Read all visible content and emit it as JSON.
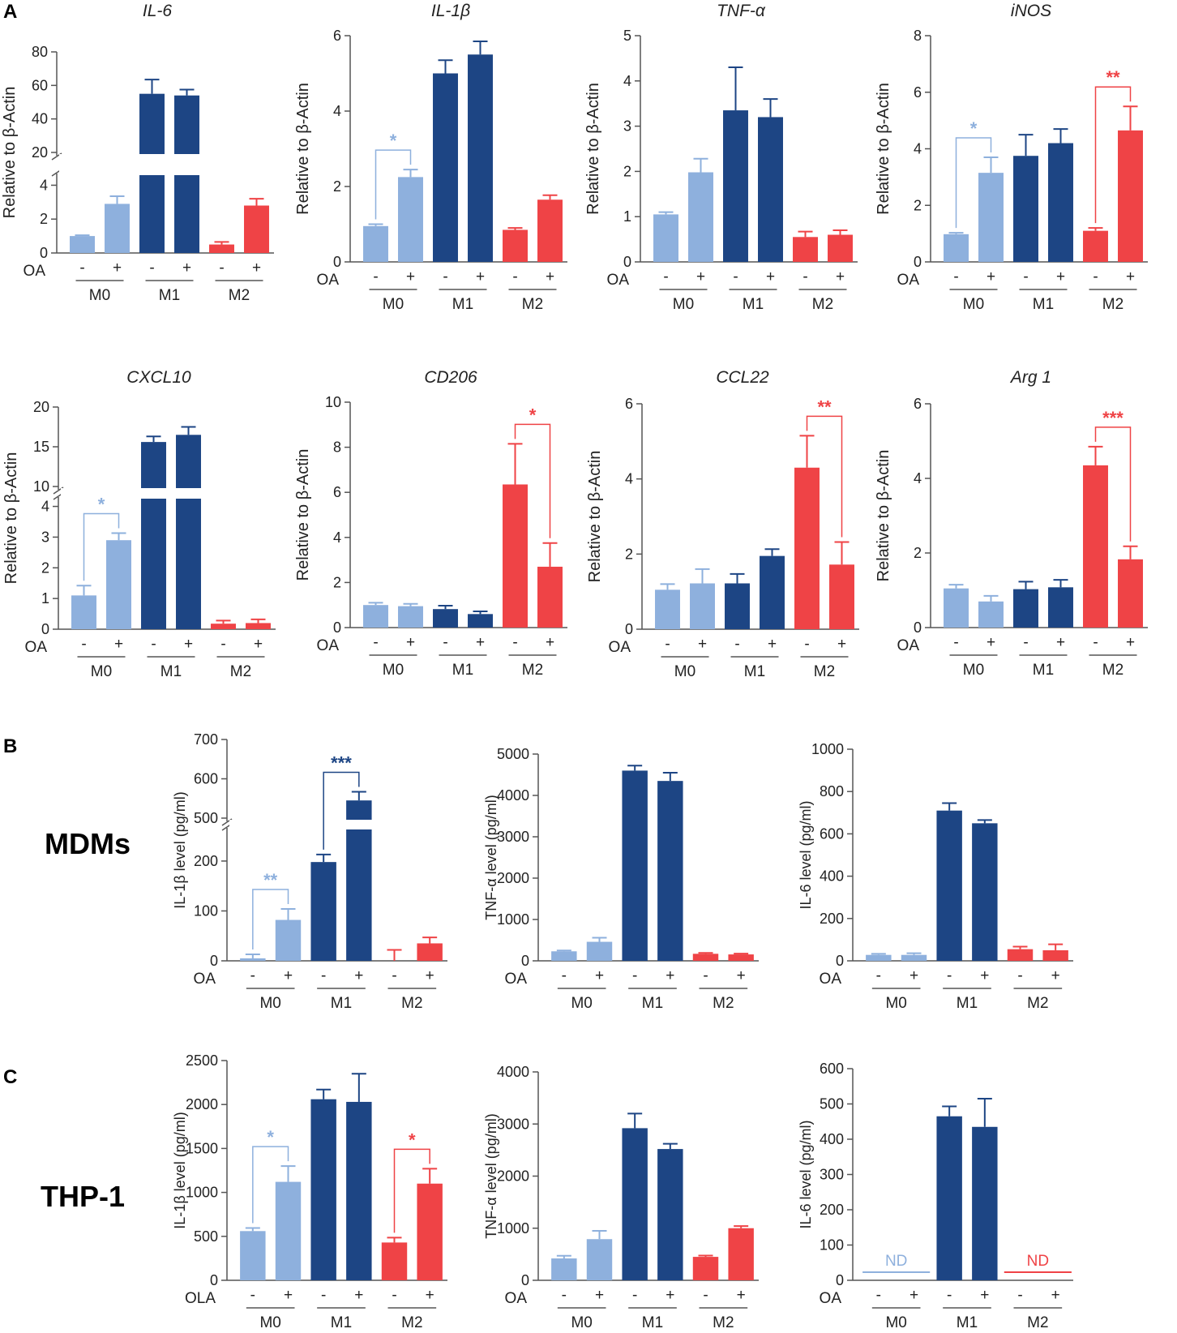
{
  "figure": {
    "panel_labels": [
      "A",
      "B",
      "C"
    ],
    "row_labels": {
      "B": "MDMs",
      "C": "THP-1"
    }
  },
  "colors": {
    "M0": "#8eb0dd",
    "M1": "#1d4584",
    "M2": "#ef4346"
  },
  "common": {
    "groups": [
      "M0",
      "M1",
      "M2"
    ],
    "treatment_marks": [
      "-",
      "+"
    ]
  },
  "chart_data": [
    {
      "id": "A-IL6",
      "type": "bar",
      "title": "IL-6",
      "ylabel": "Relative to β-Actin",
      "treatment_label": "OA",
      "groups": [
        "M0",
        "M1",
        "M2"
      ],
      "treatment": [
        "-",
        "+"
      ],
      "values": [
        1.0,
        2.9,
        55,
        54,
        0.5,
        2.8
      ],
      "errors": [
        0.05,
        0.45,
        8.5,
        3.5,
        0.15,
        0.4
      ],
      "y_ticks": [
        0,
        2,
        4,
        20,
        40,
        60,
        80
      ],
      "axis_break": {
        "lower": [
          0,
          4.5
        ],
        "upper": [
          20,
          80
        ]
      },
      "significance": []
    },
    {
      "id": "A-IL1B",
      "type": "bar",
      "title": "IL-1β",
      "ylabel": "Relative to β-Actin",
      "treatment_label": "OA",
      "groups": [
        "M0",
        "M1",
        "M2"
      ],
      "treatment": [
        "-",
        "+"
      ],
      "values": [
        0.95,
        2.25,
        5.0,
        5.5,
        0.85,
        1.65
      ],
      "errors": [
        0.05,
        0.2,
        0.35,
        0.35,
        0.05,
        0.12
      ],
      "y_ticks": [
        0,
        2,
        4,
        6
      ],
      "ylim": [
        0,
        6
      ],
      "significance": [
        {
          "from": 0,
          "to": 1,
          "label": "*",
          "group": "M0"
        }
      ]
    },
    {
      "id": "A-TNFa",
      "type": "bar",
      "title": "TNF-α",
      "ylabel": "Relative to β-Actin",
      "treatment_label": "OA",
      "groups": [
        "M0",
        "M1",
        "M2"
      ],
      "treatment": [
        "-",
        "+"
      ],
      "values": [
        1.05,
        1.98,
        3.35,
        3.2,
        0.55,
        0.6
      ],
      "errors": [
        0.05,
        0.3,
        0.95,
        0.4,
        0.12,
        0.1
      ],
      "y_ticks": [
        0,
        1,
        2,
        3,
        4,
        5
      ],
      "ylim": [
        0,
        5
      ],
      "significance": []
    },
    {
      "id": "A-iNOS",
      "type": "bar",
      "title": "iNOS",
      "ylabel": "Relative to β-Actin",
      "treatment_label": "OA",
      "groups": [
        "M0",
        "M1",
        "M2"
      ],
      "treatment": [
        "-",
        "+"
      ],
      "values": [
        0.98,
        3.15,
        3.75,
        4.2,
        1.1,
        4.65
      ],
      "errors": [
        0.05,
        0.55,
        0.75,
        0.5,
        0.1,
        0.85
      ],
      "y_ticks": [
        0,
        2,
        4,
        6,
        8
      ],
      "ylim": [
        0,
        8
      ],
      "significance": [
        {
          "from": 0,
          "to": 1,
          "label": "*",
          "group": "M0"
        },
        {
          "from": 4,
          "to": 5,
          "label": "**",
          "group": "M2"
        }
      ]
    },
    {
      "id": "A-CXCL10",
      "type": "bar",
      "title": "CXCL10",
      "ylabel": "Relative to β-Actin",
      "treatment_label": "OA",
      "groups": [
        "M0",
        "M1",
        "M2"
      ],
      "treatment": [
        "-",
        "+"
      ],
      "values": [
        1.1,
        2.9,
        15.6,
        16.5,
        0.18,
        0.2
      ],
      "errors": [
        0.32,
        0.23,
        0.7,
        1.0,
        0.1,
        0.12
      ],
      "y_ticks": [
        0,
        1,
        2,
        3,
        4,
        10,
        15,
        20
      ],
      "axis_break": {
        "lower": [
          0,
          4.2
        ],
        "upper": [
          10,
          20
        ]
      },
      "significance": [
        {
          "from": 0,
          "to": 1,
          "label": "*",
          "group": "M0"
        }
      ]
    },
    {
      "id": "A-CD206",
      "type": "bar",
      "title": "CD206",
      "ylabel": "Relative to β-Actin",
      "treatment_label": "OA",
      "groups": [
        "M0",
        "M1",
        "M2"
      ],
      "treatment": [
        "-",
        "+"
      ],
      "values": [
        1.0,
        0.95,
        0.82,
        0.6,
        6.35,
        2.7
      ],
      "errors": [
        0.1,
        0.1,
        0.15,
        0.12,
        1.8,
        1.05
      ],
      "y_ticks": [
        0,
        2,
        4,
        6,
        8,
        10
      ],
      "ylim": [
        0,
        10
      ],
      "significance": [
        {
          "from": 4,
          "to": 5,
          "label": "*",
          "group": "M2"
        }
      ]
    },
    {
      "id": "A-CCL22",
      "type": "bar",
      "title": "CCL22",
      "ylabel": "Relative to β-Actin",
      "treatment_label": "OA",
      "groups": [
        "M0",
        "M1",
        "M2"
      ],
      "treatment": [
        "-",
        "+"
      ],
      "values": [
        1.05,
        1.22,
        1.22,
        1.95,
        4.3,
        1.72
      ],
      "errors": [
        0.15,
        0.38,
        0.25,
        0.18,
        0.85,
        0.6
      ],
      "y_ticks": [
        0,
        2,
        4,
        6
      ],
      "ylim": [
        0,
        6
      ],
      "significance": [
        {
          "from": 4,
          "to": 5,
          "label": "**",
          "group": "M2"
        }
      ]
    },
    {
      "id": "A-Arg1",
      "type": "bar",
      "title": "Arg 1",
      "ylabel": "Relative to β-Actin",
      "treatment_label": "OA",
      "groups": [
        "M0",
        "M1",
        "M2"
      ],
      "treatment": [
        "-",
        "+"
      ],
      "values": [
        1.05,
        0.7,
        1.03,
        1.08,
        4.35,
        1.83
      ],
      "errors": [
        0.1,
        0.15,
        0.2,
        0.2,
        0.5,
        0.35
      ],
      "y_ticks": [
        0,
        2,
        4,
        6
      ],
      "ylim": [
        0,
        6
      ],
      "significance": [
        {
          "from": 4,
          "to": 5,
          "label": "***",
          "group": "M2"
        }
      ]
    },
    {
      "id": "B-IL1B",
      "type": "bar",
      "title": "",
      "ylabel": "IL-1β level (pg/ml)",
      "treatment_label": "OA",
      "groups": [
        "M0",
        "M1",
        "M2"
      ],
      "treatment": [
        "-",
        "+"
      ],
      "values": [
        5,
        82,
        198,
        545,
        0,
        35
      ],
      "errors": [
        8,
        22,
        15,
        22,
        22,
        12
      ],
      "y_ticks": [
        0,
        100,
        200,
        500,
        600,
        700
      ],
      "axis_break": {
        "lower": [
          0,
          260
        ],
        "upper": [
          500,
          700
        ]
      },
      "significance": [
        {
          "from": 0,
          "to": 1,
          "label": "**",
          "group": "M0"
        },
        {
          "from": 2,
          "to": 3,
          "label": "***",
          "group": "M1"
        }
      ]
    },
    {
      "id": "B-TNFa",
      "type": "bar",
      "title": "",
      "ylabel": "TNF-α level (pg/ml)",
      "treatment_label": "OA",
      "groups": [
        "M0",
        "M1",
        "M2"
      ],
      "treatment": [
        "-",
        "+"
      ],
      "values": [
        230,
        460,
        4600,
        4350,
        170,
        155
      ],
      "errors": [
        20,
        100,
        120,
        200,
        20,
        20
      ],
      "y_ticks": [
        0,
        1000,
        2000,
        3000,
        4000,
        5000
      ],
      "ylim": [
        0,
        5000
      ],
      "significance": []
    },
    {
      "id": "B-IL6",
      "type": "bar",
      "title": "",
      "ylabel": "IL-6 level (pg/ml)",
      "treatment_label": "OA",
      "groups": [
        "M0",
        "M1",
        "M2"
      ],
      "treatment": [
        "-",
        "+"
      ],
      "values": [
        28,
        28,
        710,
        650,
        55,
        50
      ],
      "errors": [
        5,
        8,
        35,
        15,
        12,
        28
      ],
      "y_ticks": [
        0,
        200,
        400,
        600,
        800,
        1000
      ],
      "ylim": [
        0,
        1000
      ],
      "significance": []
    },
    {
      "id": "C-IL1B",
      "type": "bar",
      "title": "",
      "ylabel": "IL-1β level (pg/ml)",
      "treatment_label": "OLA",
      "groups": [
        "M0",
        "M1",
        "M2"
      ],
      "treatment": [
        "-",
        "+"
      ],
      "values": [
        560,
        1120,
        2060,
        2030,
        430,
        1100
      ],
      "errors": [
        35,
        180,
        110,
        320,
        55,
        170
      ],
      "y_ticks": [
        0,
        500,
        1000,
        1500,
        2000,
        2500
      ],
      "ylim": [
        0,
        2500
      ],
      "significance": [
        {
          "from": 0,
          "to": 1,
          "label": "*",
          "group": "M0"
        },
        {
          "from": 4,
          "to": 5,
          "label": "*",
          "group": "M2"
        }
      ]
    },
    {
      "id": "C-TNFa",
      "type": "bar",
      "title": "",
      "ylabel": "TNF-α level (pg/ml)",
      "treatment_label": "OA",
      "groups": [
        "M0",
        "M1",
        "M2"
      ],
      "treatment": [
        "-",
        "+"
      ],
      "values": [
        420,
        790,
        2920,
        2520,
        450,
        1000
      ],
      "errors": [
        50,
        160,
        280,
        100,
        25,
        40
      ],
      "y_ticks": [
        0,
        1000,
        2000,
        3000,
        4000
      ],
      "ylim": [
        0,
        4000
      ],
      "significance": []
    },
    {
      "id": "C-IL6",
      "type": "bar",
      "title": "",
      "ylabel": "IL-6 level (pg/ml)",
      "treatment_label": "OA",
      "groups": [
        "M0",
        "M1",
        "M2"
      ],
      "treatment": [
        "-",
        "+"
      ],
      "values": [
        null,
        null,
        465,
        435,
        null,
        null
      ],
      "errors": [
        0,
        0,
        28,
        80,
        0,
        0
      ],
      "not_detected": [
        {
          "group": "M0",
          "label": "ND"
        },
        {
          "group": "M2",
          "label": "ND"
        }
      ],
      "y_ticks": [
        0,
        100,
        200,
        300,
        400,
        500,
        600
      ],
      "ylim": [
        0,
        600
      ],
      "significance": []
    }
  ]
}
